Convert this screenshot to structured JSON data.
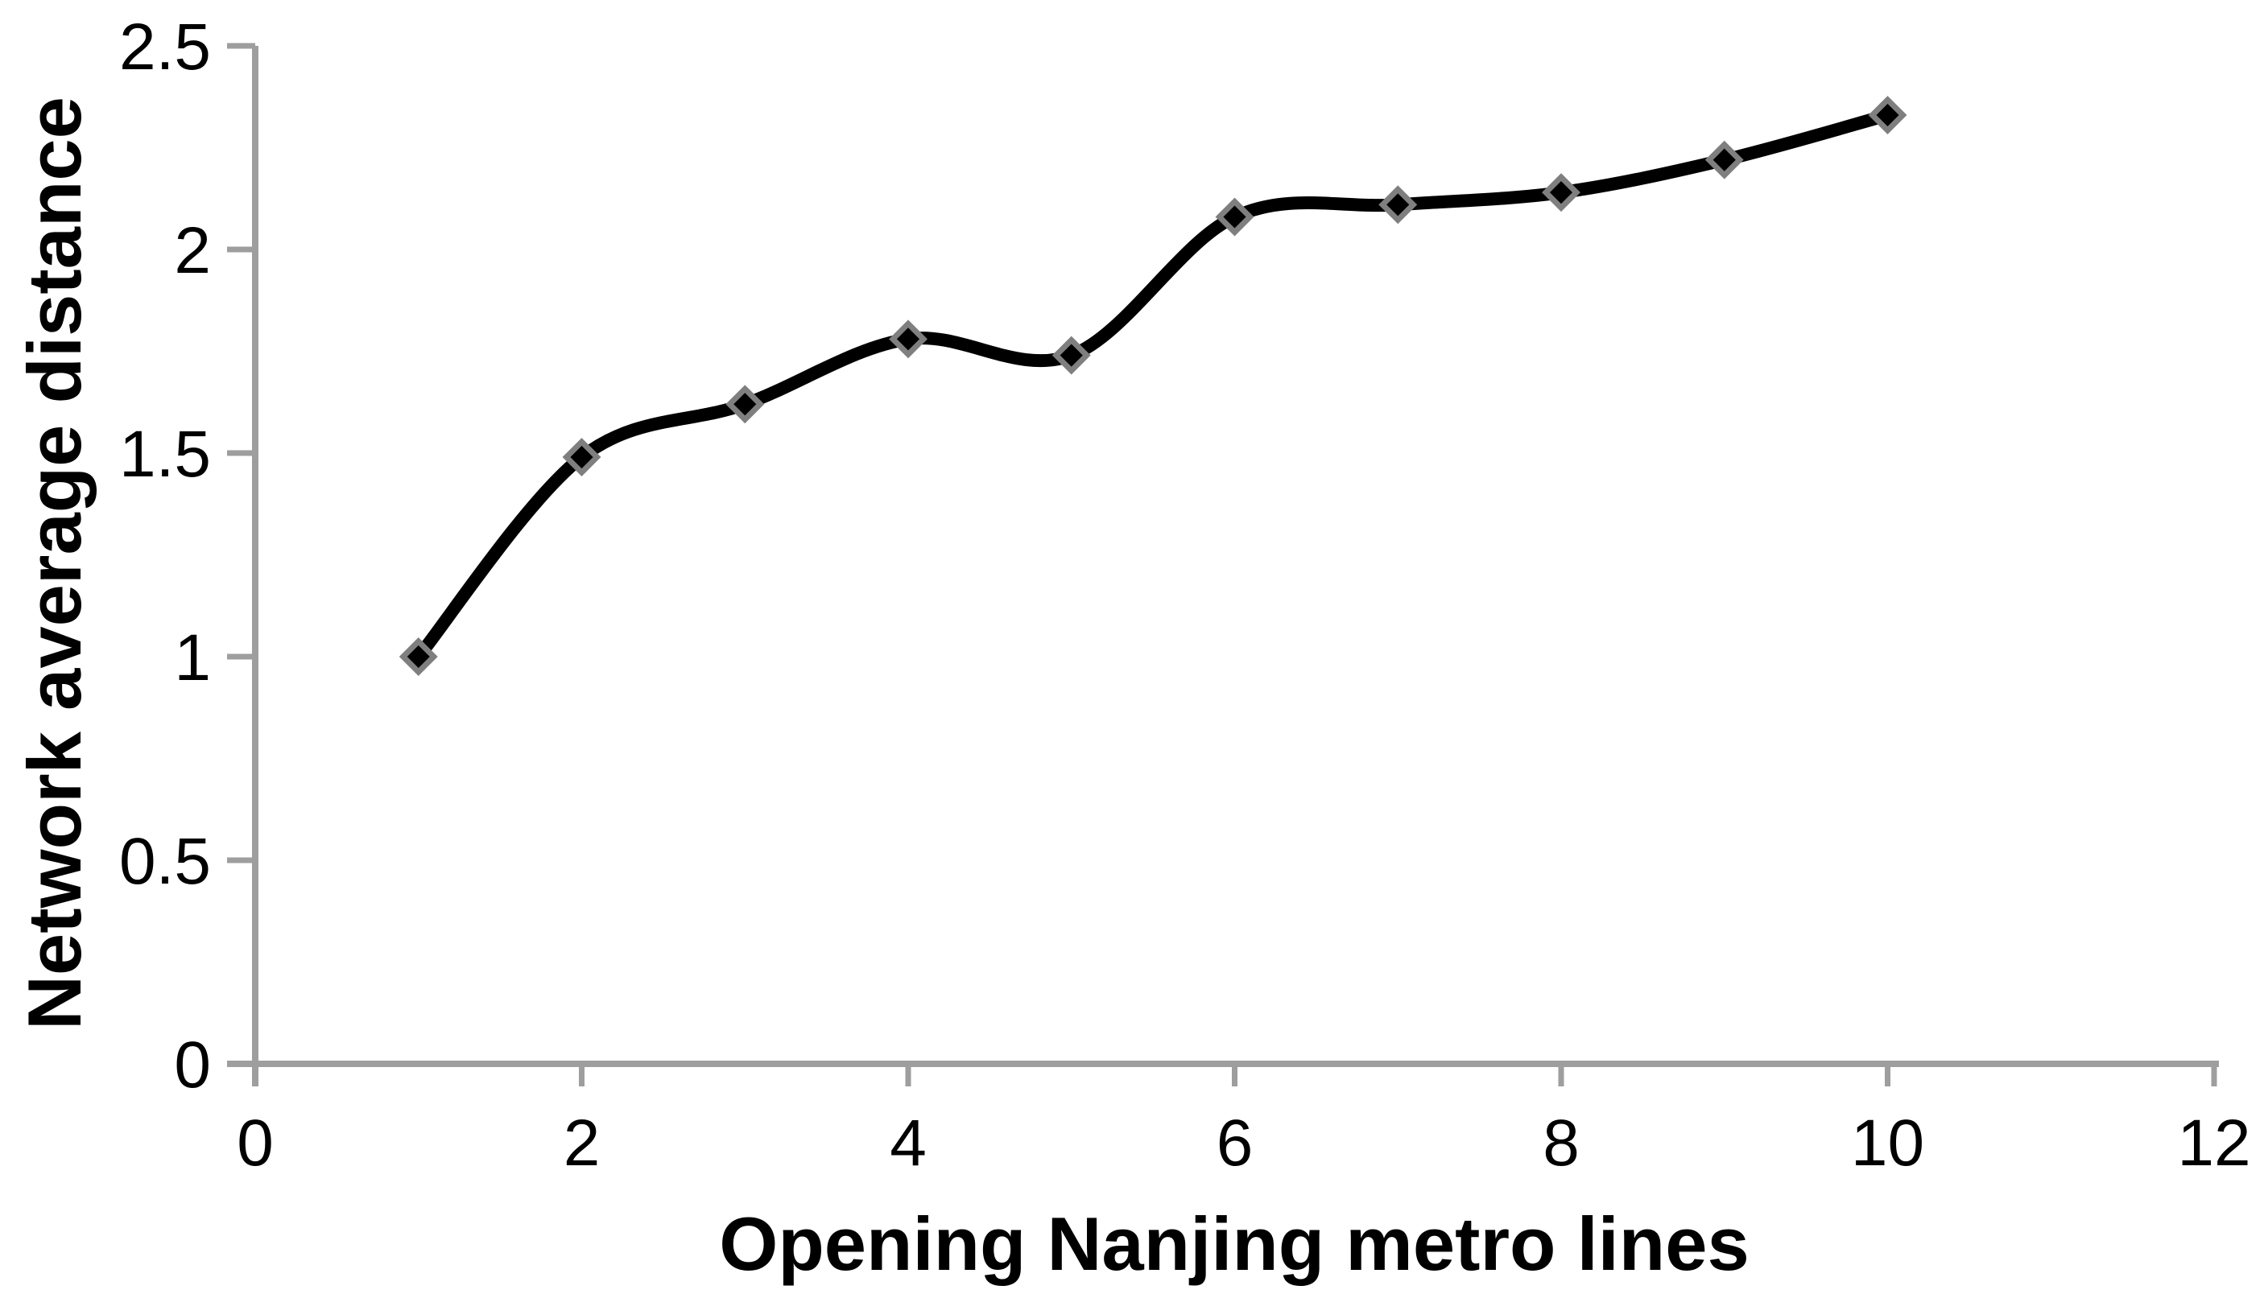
{
  "chart_data": {
    "type": "line",
    "title": "",
    "xlabel": "Opening Nanjing metro lines",
    "ylabel": "Network average distance",
    "x": [
      1,
      2,
      3,
      4,
      5,
      6,
      7,
      8,
      9,
      10
    ],
    "series": [
      {
        "name": "Network average distance",
        "values": [
          1.0,
          1.49,
          1.62,
          1.78,
          1.74,
          2.08,
          2.11,
          2.14,
          2.22,
          2.33
        ]
      }
    ],
    "xlim": [
      0,
      12
    ],
    "ylim": [
      0,
      2.5
    ],
    "xticks": [
      0,
      2,
      4,
      6,
      8,
      10,
      12
    ],
    "yticks": [
      0,
      0.5,
      1,
      1.5,
      2,
      2.5
    ],
    "xtick_labels": [
      "0",
      "2",
      "4",
      "6",
      "8",
      "10",
      "12"
    ],
    "ytick_labels": [
      "0",
      "0.5",
      "1",
      "1.5",
      "2",
      "2.5"
    ],
    "grid": false,
    "legend": "none",
    "line_style": "smooth",
    "marker": "diamond",
    "colors": {
      "line": "#000000",
      "marker_fill": "#000000",
      "marker_outline": "#7F7F7F",
      "axis": "#9E9E9E",
      "text": "#000000",
      "background": "#FFFFFF"
    }
  }
}
